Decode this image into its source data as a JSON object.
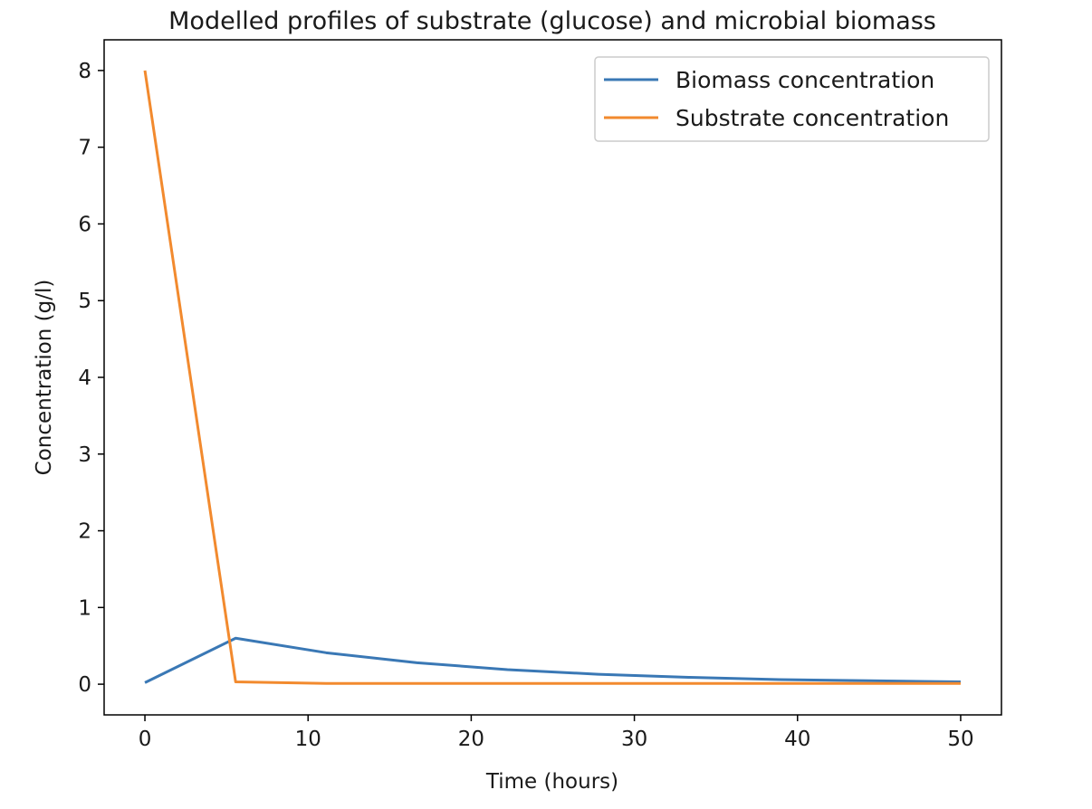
{
  "chart_data": {
    "type": "line",
    "title": "Modelled profiles of substrate (glucose) and microbial biomass",
    "xlabel": "Time (hours)",
    "ylabel": "Concentration (g/l)",
    "xlim": [
      -2.5,
      52.5
    ],
    "ylim": [
      -0.4,
      8.4
    ],
    "xticks": [
      0,
      10,
      20,
      30,
      40,
      50
    ],
    "yticks": [
      0,
      1,
      2,
      3,
      4,
      5,
      6,
      7,
      8
    ],
    "grid": false,
    "legend_position": "top-right",
    "series": [
      {
        "name": "Biomass concentration",
        "color": "#3a78b5",
        "x": [
          0,
          5.56,
          11.11,
          16.67,
          22.22,
          27.78,
          33.33,
          38.89,
          44.44,
          50
        ],
        "y": [
          0.02,
          0.6,
          0.41,
          0.28,
          0.19,
          0.13,
          0.09,
          0.06,
          0.045,
          0.03
        ]
      },
      {
        "name": "Substrate concentration",
        "color": "#f28a2e",
        "x": [
          0,
          5.56,
          11.11,
          16.67,
          22.22,
          27.78,
          33.33,
          38.89,
          44.44,
          50
        ],
        "y": [
          8.0,
          0.03,
          0.01,
          0.01,
          0.01,
          0.01,
          0.01,
          0.01,
          0.01,
          0.01
        ]
      }
    ]
  }
}
